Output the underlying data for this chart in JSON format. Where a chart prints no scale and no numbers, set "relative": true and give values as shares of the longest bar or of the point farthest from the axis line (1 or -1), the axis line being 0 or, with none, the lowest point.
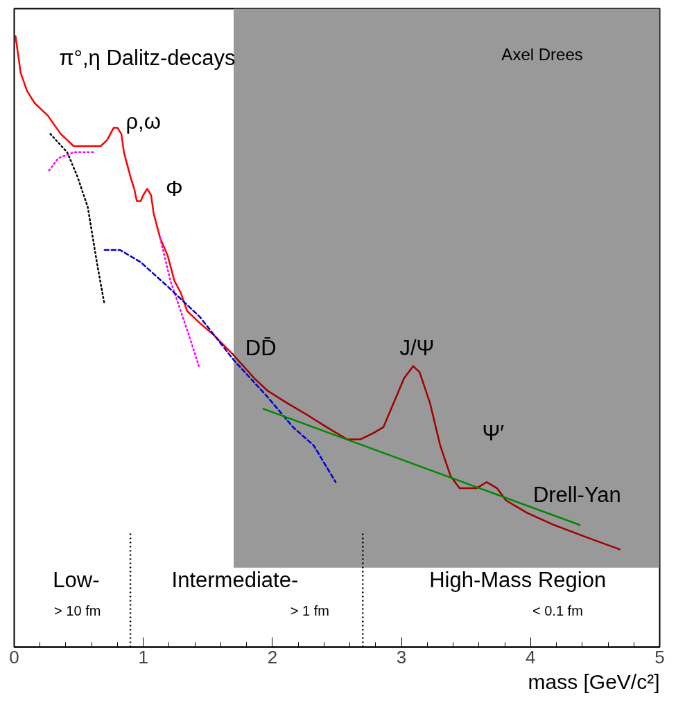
{
  "chart_data": {
    "type": "line",
    "relative": true,
    "xlabel": "mass [GeV/c²]",
    "xlim": [
      0,
      5
    ],
    "xticks": [
      0,
      1,
      2,
      3,
      4,
      5
    ],
    "grid": false,
    "bands": [
      {
        "axis": "x",
        "from": 1.7,
        "to": 5,
        "color": "#999999"
      }
    ],
    "ref_lines": [
      {
        "axis": "x",
        "value": 0.9,
        "color": "#000000",
        "line_style": "dotted"
      },
      {
        "axis": "x",
        "value": 2.7,
        "color": "#000000",
        "line_style": "dotted"
      }
    ],
    "series": [
      {
        "color": "#ff0000",
        "line_style": "solid",
        "x": [
          0.01,
          0.03,
          0.05,
          0.1,
          0.16,
          0.26,
          0.36,
          0.41,
          0.46,
          0.57,
          0.67,
          0.72,
          0.77,
          0.8,
          0.83,
          0.85,
          0.9,
          0.93,
          0.95,
          0.98,
          1.0,
          1.03,
          1.06,
          1.08,
          1.13,
          1.19,
          1.24,
          1.29,
          1.34,
          1.44,
          1.55,
          1.69
        ],
        "values": [
          1.0,
          0.97,
          0.94,
          0.91,
          0.89,
          0.87,
          0.84,
          0.83,
          0.82,
          0.82,
          0.82,
          0.83,
          0.85,
          0.85,
          0.84,
          0.81,
          0.77,
          0.75,
          0.73,
          0.73,
          0.74,
          0.75,
          0.74,
          0.71,
          0.67,
          0.64,
          0.6,
          0.58,
          0.55,
          0.53,
          0.51,
          0.48
        ]
      },
      {
        "color": "#a00000",
        "line_style": "solid",
        "x": [
          1.69,
          1.86,
          1.96,
          2.11,
          2.27,
          2.42,
          2.58,
          2.68,
          2.78,
          2.86,
          2.94,
          3.02,
          3.09,
          3.14,
          3.22,
          3.3,
          3.38,
          3.45,
          3.53,
          3.58,
          3.66,
          3.74,
          3.81,
          3.97,
          4.18,
          4.43,
          4.69
        ],
        "values": [
          0.48,
          0.44,
          0.42,
          0.4,
          0.38,
          0.36,
          0.34,
          0.34,
          0.35,
          0.36,
          0.4,
          0.44,
          0.46,
          0.45,
          0.4,
          0.33,
          0.28,
          0.26,
          0.26,
          0.26,
          0.27,
          0.26,
          0.24,
          0.22,
          0.2,
          0.18,
          0.16
        ]
      },
      {
        "color": "#000000",
        "line_style": "dotted",
        "x": [
          0.28,
          0.41,
          0.49,
          0.57,
          0.64,
          0.7
        ],
        "values": [
          0.84,
          0.81,
          0.77,
          0.72,
          0.63,
          0.56
        ]
      },
      {
        "color": "#ff00ff",
        "line_style": "dotted",
        "x": [
          0.27,
          0.34,
          0.46,
          0.62
        ],
        "values": [
          0.78,
          0.8,
          0.81,
          0.81
        ]
      },
      {
        "color": "#ff00ff",
        "line_style": "dotted",
        "x": [
          1.13,
          1.21,
          1.29,
          1.37,
          1.43
        ],
        "values": [
          0.67,
          0.6,
          0.55,
          0.5,
          0.46
        ]
      },
      {
        "color": "#0000cc",
        "line_style": "dashed",
        "x": [
          0.7,
          0.82,
          0.98,
          1.19,
          1.44,
          1.7,
          1.96,
          2.16,
          2.32,
          2.49
        ],
        "values": [
          0.65,
          0.65,
          0.63,
          0.59,
          0.54,
          0.47,
          0.41,
          0.36,
          0.33,
          0.27
        ]
      },
      {
        "color": "#008800",
        "line_style": "solid",
        "x": [
          1.93,
          4.38
        ],
        "values": [
          0.39,
          0.2
        ]
      }
    ],
    "annotations": [
      "π°,η Dalitz-decays",
      "ρ,ω",
      "Φ",
      "DD̄",
      "J/Ψ",
      "Ψ′",
      "Drell-Yan",
      "Axel Drees",
      "Low-",
      "> 10 fm",
      "Intermediate-",
      "> 1 fm",
      "High-Mass Region",
      "< 0.1 fm"
    ]
  }
}
